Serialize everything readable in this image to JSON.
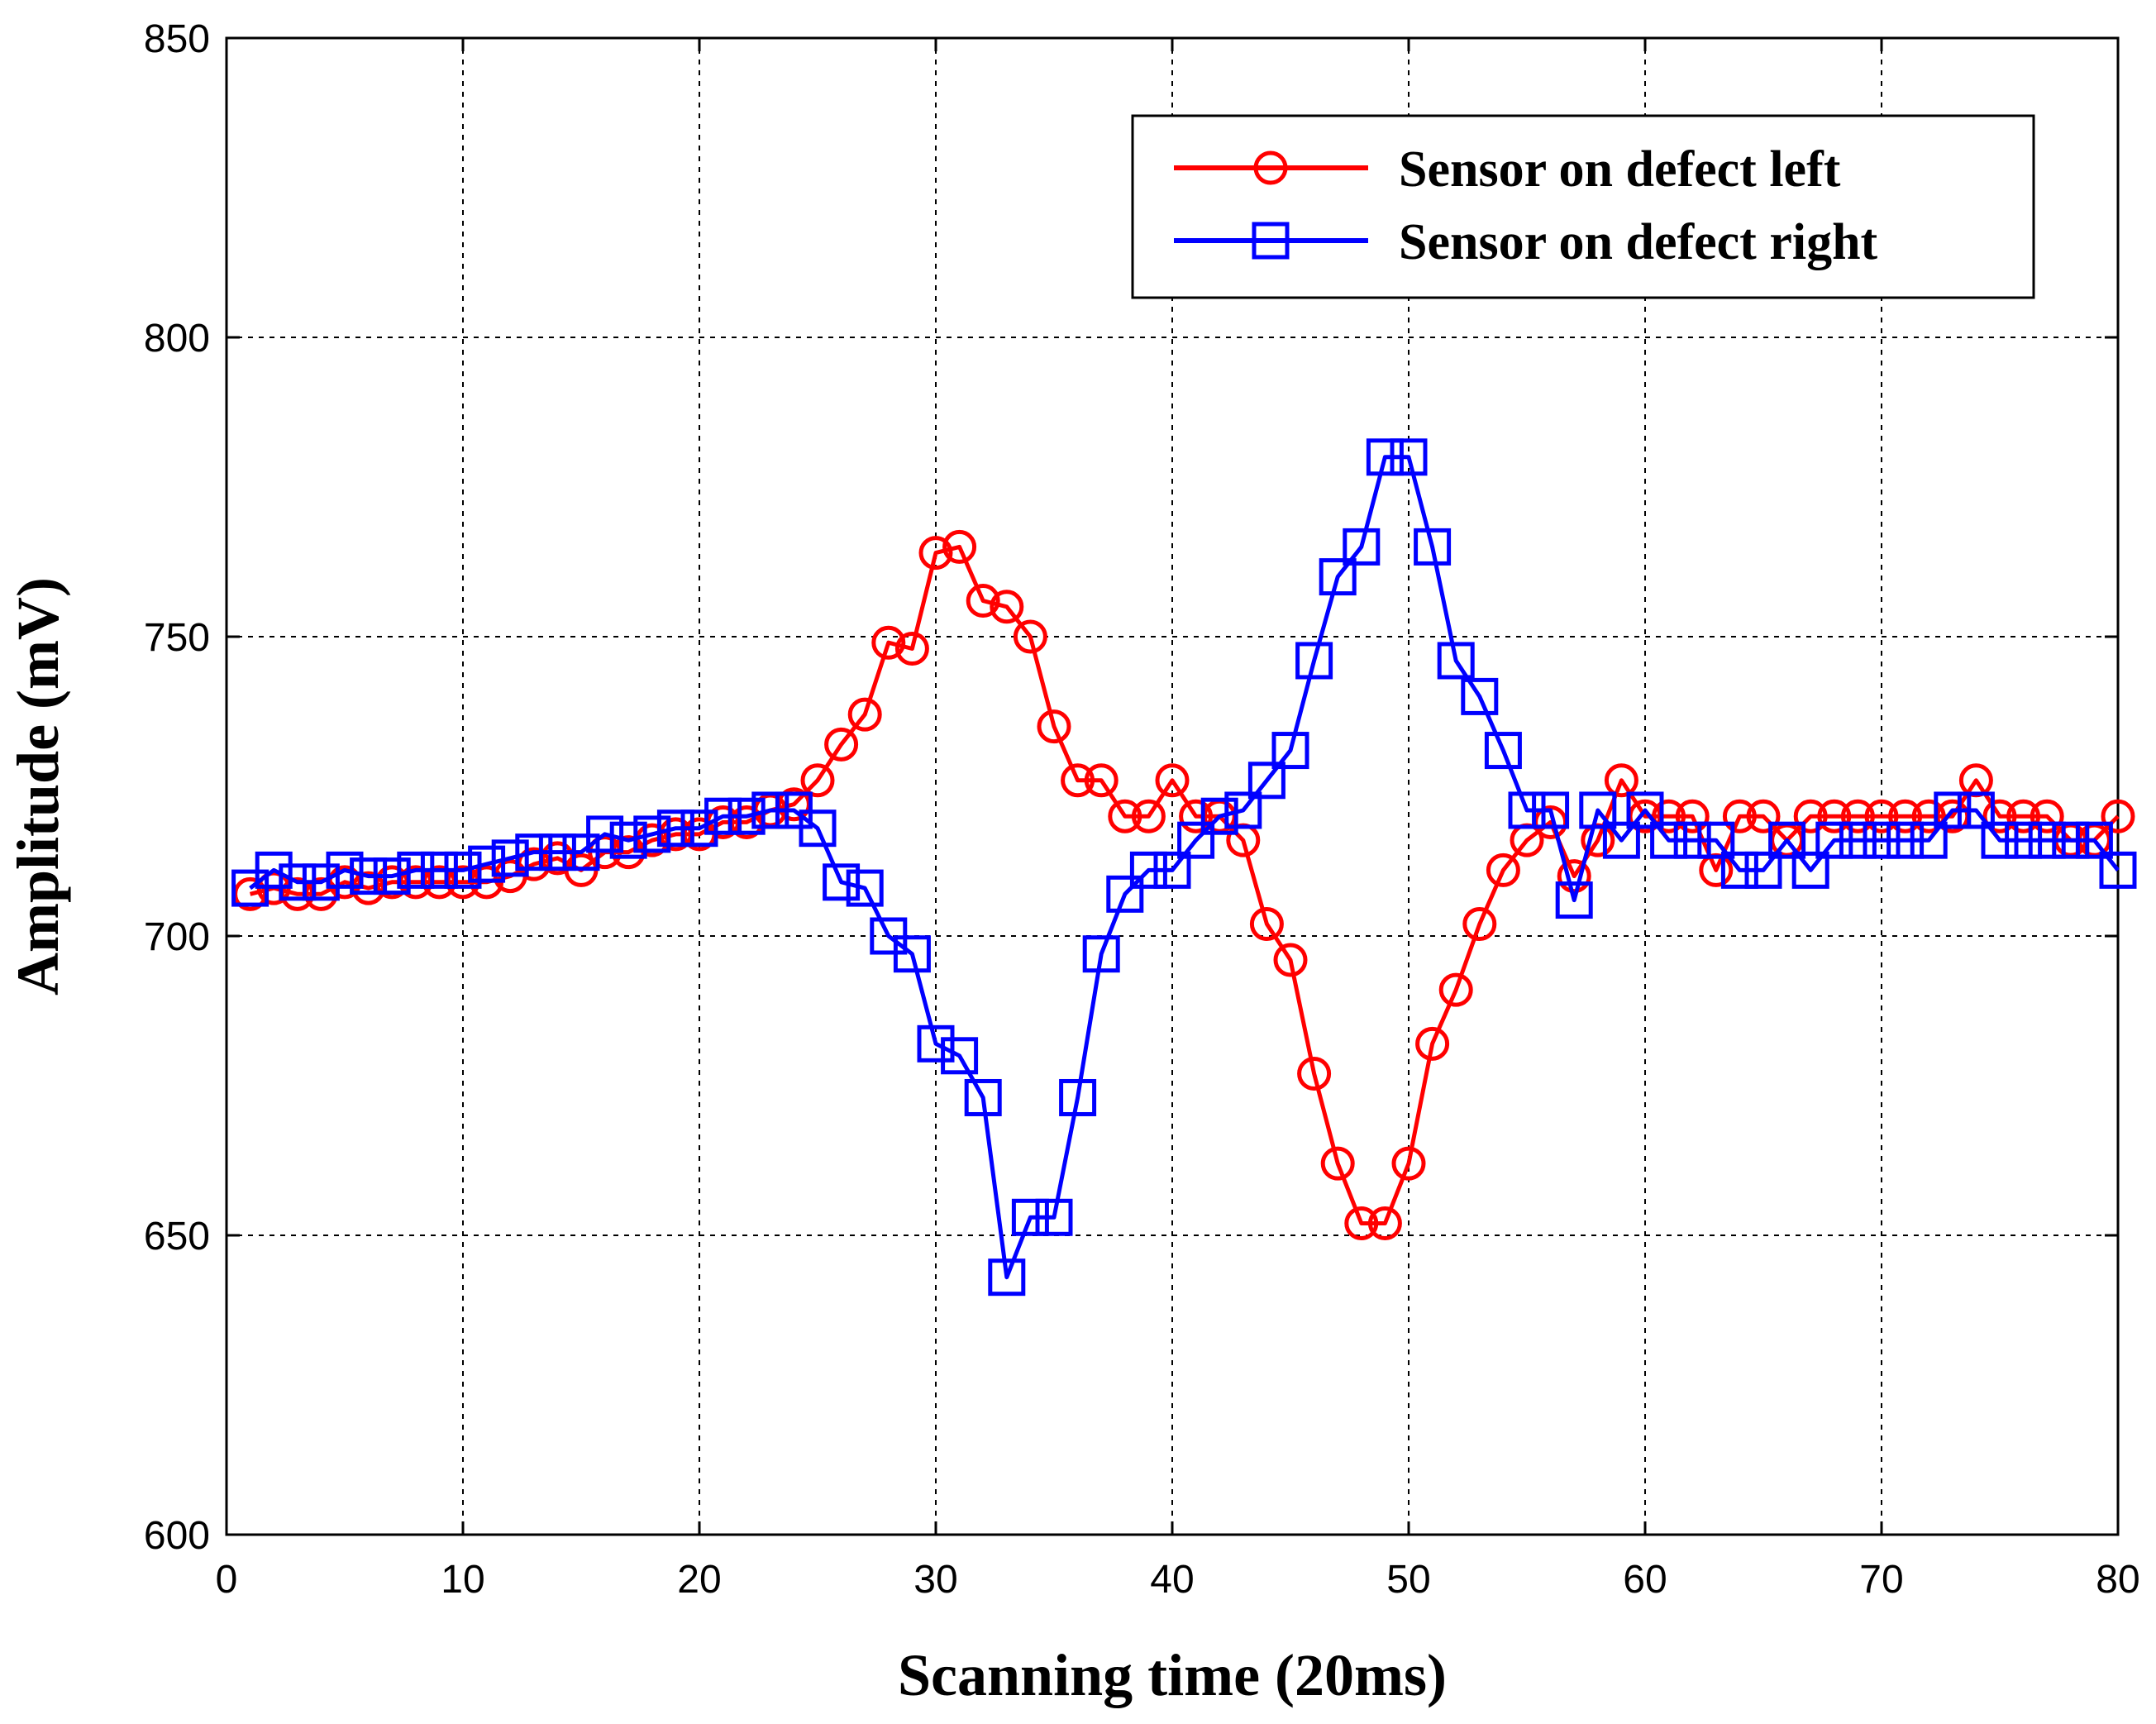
{
  "chart_data": {
    "type": "line",
    "title": "",
    "xlabel": "Scanning time (20ms)",
    "ylabel": "Amplitude (mV)",
    "xlim": [
      0,
      80
    ],
    "ylim": [
      600,
      850
    ],
    "xticks": [
      0,
      10,
      20,
      30,
      40,
      50,
      60,
      70,
      80
    ],
    "yticks": [
      600,
      650,
      700,
      750,
      800,
      850
    ],
    "grid": true,
    "legend_position": "top-right",
    "series": [
      {
        "name": "Sensor on defect left",
        "color": "#ff0000",
        "marker": "circle",
        "x": [
          1,
          2,
          3,
          4,
          5,
          6,
          7,
          8,
          9,
          10,
          11,
          12,
          13,
          14,
          15,
          16,
          17,
          18,
          19,
          20,
          21,
          22,
          23,
          24,
          25,
          26,
          27,
          28,
          29,
          30,
          31,
          32,
          33,
          34,
          35,
          36,
          37,
          38,
          39,
          40,
          41,
          42,
          43,
          44,
          45,
          46,
          47,
          48,
          49,
          50,
          51,
          52,
          53,
          54,
          55,
          56,
          57,
          58,
          59,
          60,
          61,
          62,
          63,
          64,
          65,
          66,
          67,
          68,
          69,
          70,
          71,
          72,
          73,
          74,
          75,
          76,
          77,
          78,
          79,
          80
        ],
        "values": [
          707,
          708,
          707,
          707,
          709,
          708,
          709,
          709,
          709,
          709,
          709,
          710,
          712,
          713,
          711,
          714,
          714,
          716,
          717,
          717,
          719,
          719,
          721,
          722,
          726,
          732,
          737,
          749,
          748,
          764,
          765,
          756,
          755,
          750,
          735,
          726,
          726,
          720,
          720,
          726,
          720,
          720,
          716,
          702,
          696,
          677,
          662,
          652,
          652,
          662,
          682,
          691,
          702,
          711,
          716,
          719,
          710,
          716,
          726,
          720,
          720,
          720,
          711,
          720,
          720,
          716,
          720,
          720,
          720,
          720,
          720,
          720,
          720,
          726,
          720,
          720,
          720,
          716,
          716,
          720
        ]
      },
      {
        "name": "Sensor on defect right",
        "color": "#0000ff",
        "marker": "square",
        "x": [
          1,
          2,
          3,
          4,
          5,
          6,
          7,
          8,
          9,
          10,
          11,
          12,
          13,
          14,
          15,
          16,
          17,
          18,
          19,
          20,
          21,
          22,
          23,
          24,
          25,
          26,
          27,
          28,
          29,
          30,
          31,
          32,
          33,
          34,
          35,
          36,
          37,
          38,
          39,
          40,
          41,
          42,
          43,
          44,
          45,
          46,
          47,
          48,
          49,
          50,
          51,
          52,
          53,
          54,
          55,
          56,
          57,
          58,
          59,
          60,
          61,
          62,
          63,
          64,
          65,
          66,
          67,
          68,
          69,
          70,
          71,
          72,
          73,
          74,
          75,
          76,
          77,
          78,
          79,
          80
        ],
        "values": [
          708,
          711,
          709,
          709,
          711,
          710,
          710,
          711,
          711,
          711,
          712,
          713,
          714,
          714,
          714,
          717,
          716,
          717,
          718,
          718,
          720,
          720,
          721,
          721,
          718,
          709,
          708,
          700,
          697,
          682,
          680,
          673,
          643,
          653,
          653,
          673,
          697,
          707,
          711,
          711,
          716,
          720,
          721,
          726,
          731,
          746,
          760,
          765,
          780,
          780,
          765,
          746,
          740,
          731,
          721,
          721,
          706,
          721,
          716,
          721,
          716,
          716,
          716,
          711,
          711,
          716,
          711,
          716,
          716,
          716,
          716,
          716,
          721,
          721,
          716,
          716,
          716,
          716,
          716,
          711
        ]
      }
    ]
  }
}
